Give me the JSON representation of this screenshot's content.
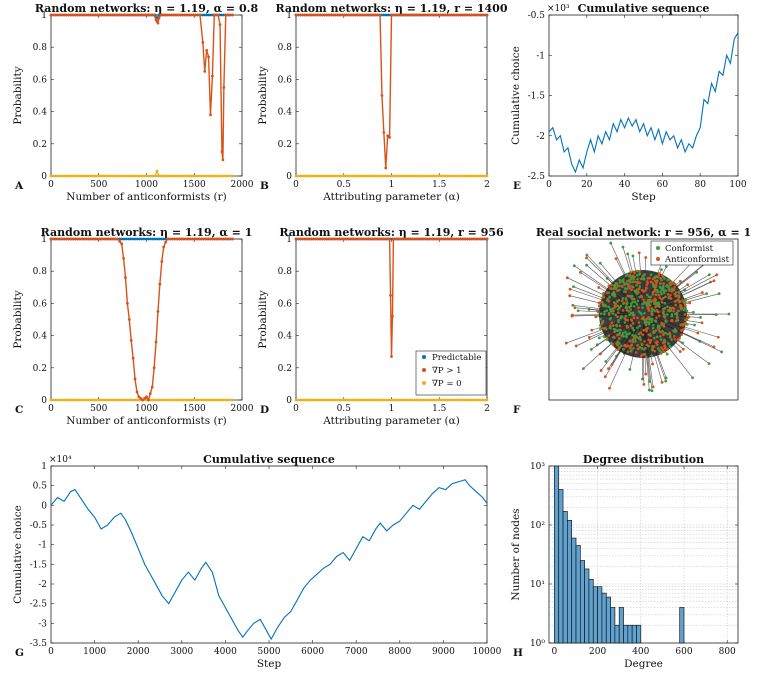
{
  "colors": {
    "blue": "#0072BD",
    "orange": "#D95319",
    "yellow": "#EDB120",
    "green": "#3C9E3C",
    "edge": "#555555",
    "bar": "#5FA2D0",
    "grid": "#BFBFBF"
  },
  "chart_data": [
    {
      "id": "A",
      "type": "line",
      "panel_label": "A",
      "title": "Random networks: η = 1.19, α = 0.8",
      "xlabel": "Number of anticonformists (r)",
      "ylabel": "Probability",
      "xlim": [
        0,
        2000
      ],
      "ylim": [
        0,
        1
      ],
      "xticks": [
        0,
        500,
        1000,
        1500,
        2000
      ],
      "xtick_labels": [
        "0",
        "500",
        "1000",
        "1500",
        "2000"
      ],
      "yticks": [
        0,
        0.2,
        0.4,
        0.6,
        0.8,
        1
      ],
      "ytick_labels": [
        "0",
        "0.2",
        "0.4",
        "0.6",
        "0.8",
        "1"
      ],
      "series": [
        {
          "name": "Predictable",
          "color": "blue",
          "x": [
            0,
            1090,
            1110,
            1130,
            1150,
            1900
          ],
          "y": [
            1,
            1,
            0.98,
            1,
            1,
            1
          ]
        },
        {
          "name": "∇P > 1",
          "color": "orange",
          "x": [
            0,
            1080,
            1100,
            1110,
            1120,
            1130,
            1150,
            1560,
            1590,
            1610,
            1630,
            1650,
            1670,
            1690,
            1710,
            1730,
            1750,
            1770,
            1790,
            1800,
            1810,
            1830,
            1850,
            1870,
            1900
          ],
          "y": [
            1,
            1,
            0.97,
            0.96,
            0.95,
            0.98,
            1,
            1,
            0.83,
            0.65,
            0.78,
            0.74,
            0.38,
            0.62,
            1,
            1,
            1,
            0.94,
            0.15,
            0.1,
            0.55,
            1,
            1,
            1,
            1
          ]
        },
        {
          "name": "∇P = 0",
          "color": "yellow",
          "x": [
            0,
            1090,
            1110,
            1130,
            1150,
            1900
          ],
          "y": [
            0,
            0,
            0.03,
            0,
            0,
            0
          ]
        }
      ]
    },
    {
      "id": "B",
      "type": "line",
      "panel_label": "B",
      "title": "Random networks: η = 1.19, r = 1400",
      "xlabel": "Attributing parameter (α)",
      "ylabel": "Probability",
      "xlim": [
        0,
        2
      ],
      "ylim": [
        0,
        1
      ],
      "xticks": [
        0,
        0.5,
        1,
        1.5,
        2
      ],
      "xtick_labels": [
        "0",
        "0.5",
        "1",
        "1.5",
        "2"
      ],
      "yticks": [
        0,
        0.2,
        0.4,
        0.6,
        0.8,
        1
      ],
      "ytick_labels": [
        "0",
        "0.2",
        "0.4",
        "0.6",
        "0.8",
        "1"
      ],
      "series": [
        {
          "name": "Predictable",
          "color": "blue",
          "x": [
            0,
            2
          ],
          "y": [
            1,
            1
          ]
        },
        {
          "name": "∇P > 1",
          "color": "orange",
          "x": [
            0,
            0.88,
            0.9,
            0.92,
            0.94,
            0.96,
            0.98,
            1.0,
            2.0
          ],
          "y": [
            1,
            1,
            0.5,
            0.27,
            0.05,
            0.25,
            0.24,
            1,
            1
          ]
        },
        {
          "name": "∇P = 0",
          "color": "yellow",
          "x": [
            0,
            2
          ],
          "y": [
            0,
            0
          ]
        }
      ]
    },
    {
      "id": "E",
      "type": "line",
      "panel_label": "E",
      "title": "Cumulative sequence",
      "xlabel": "Step",
      "ylabel": "Cumulative choice",
      "exponent_label": "×10³",
      "xlim": [
        0,
        100
      ],
      "ylim": [
        -2.5,
        -0.5
      ],
      "xticks": [
        0,
        20,
        40,
        60,
        80,
        100
      ],
      "xtick_labels": [
        "0",
        "20",
        "40",
        "60",
        "80",
        "100"
      ],
      "yticks": [
        -2.5,
        -2,
        -1.5,
        -1,
        -0.5
      ],
      "ytick_labels": [
        "-2.5",
        "-2",
        "-1.5",
        "-1",
        "-0.5"
      ],
      "series": [
        {
          "name": "Cumulative sequence",
          "color": "blue",
          "x": [
            0,
            2,
            4,
            6,
            8,
            10,
            12,
            14,
            16,
            18,
            20,
            22,
            24,
            26,
            28,
            30,
            32,
            34,
            36,
            38,
            40,
            42,
            44,
            46,
            48,
            50,
            52,
            54,
            56,
            58,
            60,
            62,
            64,
            66,
            68,
            70,
            72,
            74,
            76,
            78,
            80,
            82,
            84,
            86,
            88,
            90,
            92,
            94,
            96,
            98,
            100
          ],
          "y": [
            -1.95,
            -1.9,
            -2.05,
            -2.0,
            -2.2,
            -2.15,
            -2.35,
            -2.45,
            -2.3,
            -2.4,
            -2.2,
            -2.05,
            -2.2,
            -2.0,
            -2.1,
            -1.95,
            -2.05,
            -1.85,
            -1.95,
            -1.8,
            -1.9,
            -1.78,
            -1.88,
            -1.8,
            -1.95,
            -1.85,
            -2.0,
            -1.9,
            -2.05,
            -1.92,
            -2.1,
            -1.95,
            -2.05,
            -2.0,
            -2.15,
            -2.05,
            -2.2,
            -2.1,
            -2.15,
            -2.0,
            -1.9,
            -1.55,
            -1.6,
            -1.35,
            -1.45,
            -1.2,
            -1.25,
            -1.0,
            -1.1,
            -0.8,
            -0.72
          ]
        }
      ]
    },
    {
      "id": "C",
      "type": "line",
      "panel_label": "C",
      "title": "Random networks: η = 1.19, α = 1",
      "xlabel": "Number of anticonformists (r)",
      "ylabel": "Probability",
      "xlim": [
        0,
        2000
      ],
      "ylim": [
        0,
        1
      ],
      "xticks": [
        0,
        500,
        1000,
        1500,
        2000
      ],
      "xtick_labels": [
        "0",
        "500",
        "1000",
        "1500",
        "2000"
      ],
      "yticks": [
        0,
        0.2,
        0.4,
        0.6,
        0.8,
        1
      ],
      "ytick_labels": [
        "0",
        "0.2",
        "0.4",
        "0.6",
        "0.8",
        "1"
      ],
      "series": [
        {
          "name": "Predictable",
          "color": "blue",
          "x": [
            0,
            1900
          ],
          "y": [
            1,
            1
          ]
        },
        {
          "name": "∇P > 1",
          "color": "orange",
          "x": [
            0,
            700,
            740,
            760,
            780,
            800,
            820,
            840,
            860,
            880,
            900,
            920,
            940,
            960,
            980,
            1000,
            1020,
            1040,
            1060,
            1080,
            1100,
            1120,
            1140,
            1160,
            1180,
            1200,
            1220,
            1250,
            1900
          ],
          "y": [
            1,
            1,
            0.97,
            0.88,
            0.76,
            0.6,
            0.5,
            0.37,
            0.26,
            0.13,
            0.05,
            0.02,
            0.01,
            0.0,
            0.01,
            0.02,
            0.0,
            0.04,
            0.08,
            0.2,
            0.36,
            0.55,
            0.72,
            0.86,
            0.95,
            0.98,
            1,
            1,
            1
          ]
        },
        {
          "name": "∇P = 0",
          "color": "yellow",
          "x": [
            0,
            1900
          ],
          "y": [
            0,
            0
          ]
        }
      ]
    },
    {
      "id": "D",
      "type": "line",
      "panel_label": "D",
      "title": "Random networks: η = 1.19, r = 956",
      "xlabel": "Attributing parameter (α)",
      "ylabel": "Probability",
      "xlim": [
        0,
        2
      ],
      "ylim": [
        0,
        1
      ],
      "xticks": [
        0,
        0.5,
        1,
        1.5,
        2
      ],
      "xtick_labels": [
        "0",
        "0.5",
        "1",
        "1.5",
        "2"
      ],
      "yticks": [
        0,
        0.2,
        0.4,
        0.6,
        0.8,
        1
      ],
      "ytick_labels": [
        "0",
        "0.2",
        "0.4",
        "0.6",
        "0.8",
        "1"
      ],
      "legend": {
        "entries": [
          "Predictable",
          "∇P > 1",
          "∇P = 0"
        ],
        "placement": "bottom-right"
      },
      "series": [
        {
          "name": "Predictable",
          "color": "blue",
          "x": [
            0,
            2
          ],
          "y": [
            1,
            1
          ]
        },
        {
          "name": "∇P > 1",
          "color": "orange",
          "x": [
            0,
            0.98,
            0.99,
            1.0,
            1.01,
            1.02,
            2.0
          ],
          "y": [
            1,
            1,
            0.65,
            0.27,
            0.52,
            1,
            1
          ]
        },
        {
          "name": "∇P = 0",
          "color": "yellow",
          "x": [
            0,
            2
          ],
          "y": [
            0,
            0
          ]
        }
      ]
    },
    {
      "id": "F",
      "type": "scatter",
      "panel_label": "F",
      "title": "Real social network: r = 956, α = 1",
      "legend": {
        "entries": [
          "Conformist",
          "Anticonformist"
        ],
        "placement": "top-right"
      },
      "node_counts": {
        "Conformist": 1044,
        "Anticonformist": 956
      }
    },
    {
      "id": "G",
      "type": "line",
      "panel_label": "G",
      "title": "Cumulative sequence",
      "xlabel": "Step",
      "ylabel": "Cumulative choice",
      "exponent_label": "×10⁴",
      "xlim": [
        0,
        10000
      ],
      "ylim": [
        -3.5,
        1
      ],
      "xticks": [
        0,
        1000,
        2000,
        3000,
        4000,
        5000,
        6000,
        7000,
        8000,
        9000,
        10000
      ],
      "xtick_labels": [
        "0",
        "1000",
        "2000",
        "3000",
        "4000",
        "5000",
        "6000",
        "7000",
        "8000",
        "9000",
        "10000"
      ],
      "yticks": [
        -3.5,
        -3,
        -2.5,
        -2,
        -1.5,
        -1,
        -0.5,
        0,
        0.5,
        1
      ],
      "ytick_labels": [
        "-3.5",
        "-3",
        "-2.5",
        "-2",
        "-1.5",
        "-1",
        "-0.5",
        "0",
        "0.5",
        "1"
      ],
      "series": [
        {
          "name": "Cumulative sequence",
          "color": "blue",
          "x": [
            0,
            150,
            300,
            450,
            550,
            700,
            850,
            1000,
            1150,
            1300,
            1450,
            1600,
            1700,
            1850,
            2000,
            2150,
            2300,
            2450,
            2550,
            2700,
            2850,
            3000,
            3150,
            3300,
            3450,
            3550,
            3700,
            3850,
            4000,
            4150,
            4300,
            4400,
            4500,
            4650,
            4800,
            4950,
            5050,
            5200,
            5350,
            5500,
            5650,
            5800,
            5950,
            6100,
            6250,
            6400,
            6550,
            6700,
            6850,
            7000,
            7150,
            7300,
            7450,
            7550,
            7700,
            7850,
            8000,
            8150,
            8300,
            8450,
            8600,
            8750,
            8900,
            9050,
            9200,
            9350,
            9500,
            9600,
            9750,
            9900,
            10000
          ],
          "y": [
            0,
            0.2,
            0.1,
            0.35,
            0.4,
            0.15,
            -0.1,
            -0.3,
            -0.6,
            -0.5,
            -0.3,
            -0.2,
            -0.35,
            -0.7,
            -1.1,
            -1.5,
            -1.8,
            -2.1,
            -2.3,
            -2.5,
            -2.2,
            -1.9,
            -1.7,
            -1.9,
            -1.6,
            -1.45,
            -1.7,
            -2.3,
            -2.6,
            -2.9,
            -3.2,
            -3.35,
            -3.2,
            -3.0,
            -2.9,
            -3.2,
            -3.4,
            -3.1,
            -2.85,
            -2.7,
            -2.4,
            -2.1,
            -1.9,
            -1.75,
            -1.6,
            -1.5,
            -1.3,
            -1.2,
            -1.4,
            -1.1,
            -0.8,
            -0.9,
            -0.6,
            -0.45,
            -0.65,
            -0.5,
            -0.4,
            -0.2,
            0.0,
            -0.1,
            0.1,
            0.3,
            0.45,
            0.4,
            0.55,
            0.6,
            0.65,
            0.5,
            0.35,
            0.2,
            0.05
          ]
        }
      ]
    },
    {
      "id": "H",
      "type": "bar",
      "panel_label": "H",
      "title": "Degree distribution",
      "xlabel": "Degree",
      "ylabel": "Number of nodes",
      "yscale": "log",
      "xlim": [
        -25,
        850
      ],
      "ylim": [
        1,
        1000
      ],
      "xticks": [
        0,
        200,
        400,
        600,
        800
      ],
      "xtick_labels": [
        "0",
        "200",
        "400",
        "600",
        "800"
      ],
      "yticks": [
        1,
        10,
        100,
        1000
      ],
      "ytick_labels": [
        "10⁰",
        "10¹",
        "10²",
        "10³"
      ],
      "bin_width": 20,
      "bins": [
        0,
        20,
        40,
        60,
        80,
        100,
        120,
        140,
        160,
        180,
        200,
        220,
        240,
        260,
        280,
        300,
        320,
        340,
        360,
        380,
        400,
        580
      ],
      "values": [
        1000,
        400,
        170,
        120,
        60,
        45,
        25,
        18,
        12,
        9,
        9,
        7,
        6,
        4,
        2,
        4,
        2,
        2,
        2,
        2,
        1,
        4
      ]
    }
  ]
}
